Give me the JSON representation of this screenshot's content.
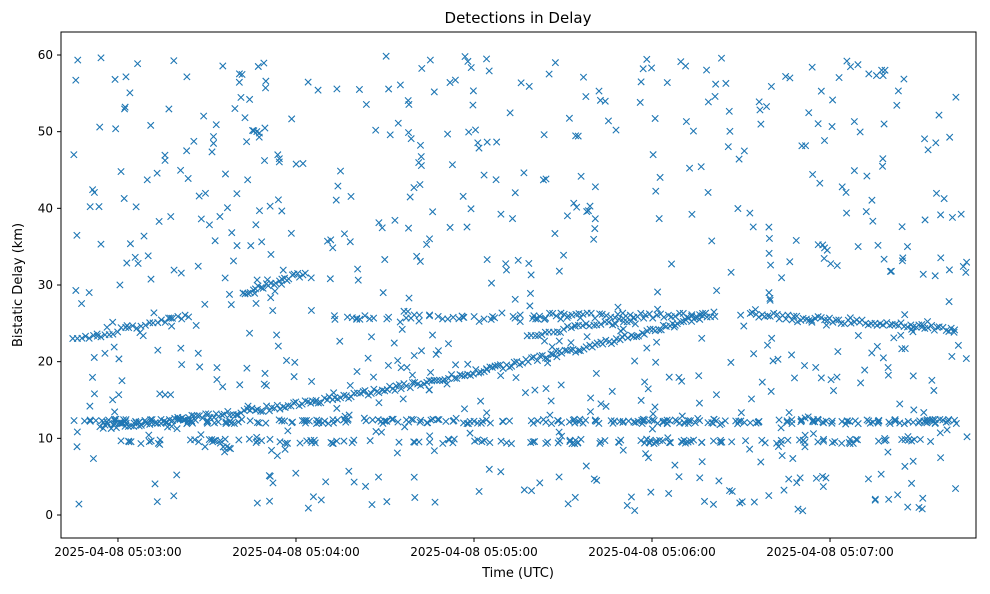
{
  "chart_data": {
    "type": "scatter",
    "title": "Detections in Delay",
    "xlabel": "Time (UTC)",
    "ylabel": "Bistatic Delay (km)",
    "marker": "x",
    "color": "#1f77b4",
    "xlim_min": [
      2.68,
      7.82
    ],
    "ylim": [
      -3,
      63
    ],
    "x_ticks": [
      {
        "value": 3,
        "label": "2025-04-08 05:03:00"
      },
      {
        "value": 4,
        "label": "2025-04-08 05:04:00"
      },
      {
        "value": 5,
        "label": "2025-04-08 05:05:00"
      },
      {
        "value": 6,
        "label": "2025-04-08 05:06:00"
      },
      {
        "value": 7,
        "label": "2025-04-08 05:07:00"
      }
    ],
    "y_ticks": [
      0,
      10,
      20,
      30,
      40,
      50,
      60
    ],
    "x_units": "minutes after 05:00:00 UTC on 2025-04-08",
    "x_range": [
      2.73,
      7.77
    ],
    "tracks": [
      {
        "name": "rising target track",
        "x_start": 2.9,
        "x_end": 6.3,
        "y_start": 11.5,
        "y_end": 26.0,
        "shape": "curve",
        "count": 220
      },
      {
        "name": "early short track",
        "x_start": 2.75,
        "x_end": 3.4,
        "y_start": 22.8,
        "y_end": 26.0,
        "count": 30
      },
      {
        "name": "mid short track",
        "x_start": 3.7,
        "x_end": 4.05,
        "y_start": 29.0,
        "y_end": 31.5,
        "count": 25
      },
      {
        "name": "late short track",
        "x_start": 5.3,
        "x_end": 5.9,
        "y_start": 23.5,
        "y_end": 25.5,
        "count": 30
      },
      {
        "name": "plateau track",
        "x_start": 5.4,
        "x_end": 6.35,
        "y_start": 26.0,
        "y_end": 26.0,
        "count": 45
      },
      {
        "name": "end track",
        "x_start": 6.55,
        "x_end": 7.7,
        "y_start": 26.2,
        "y_end": 24.2,
        "count": 70
      }
    ],
    "bands": [
      {
        "name": "band at 12 km",
        "y": 12.2,
        "x_start": 2.75,
        "x_end": 7.75,
        "count": 260
      },
      {
        "name": "band at 9.6 km",
        "y": 9.6,
        "x_start": 3.0,
        "x_end": 7.6,
        "count": 140
      },
      {
        "name": "band at 26 km",
        "y": 25.8,
        "x_start": 4.2,
        "x_end": 5.4,
        "count": 40
      }
    ],
    "clutter": {
      "x_range": [
        2.73,
        7.77
      ],
      "y_range": [
        0.5,
        60
      ],
      "count": 700
    }
  }
}
